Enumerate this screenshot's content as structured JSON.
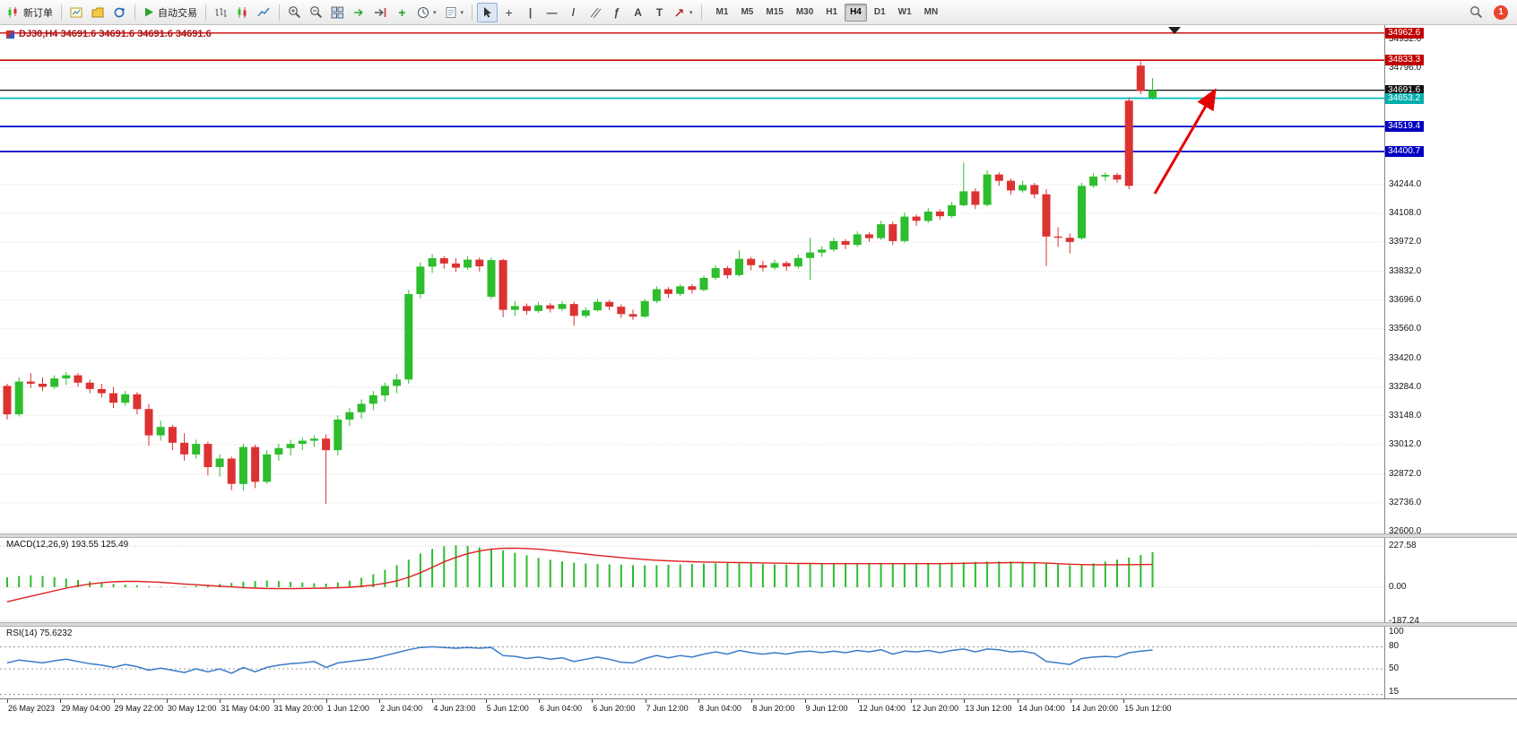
{
  "toolbar": {
    "new_order_label": "新订单",
    "autotrade_label": "自动交易",
    "timeframes": [
      "M1",
      "M5",
      "M15",
      "M30",
      "H1",
      "H4",
      "D1",
      "W1",
      "MN"
    ],
    "active_timeframe": "H4",
    "notification_count": "1"
  },
  "chart": {
    "title": "DJ30,H4 34691.6 34691.6 34691.6 34691.6",
    "symbol": "DJ30",
    "period": "H4",
    "current_price": "34691.6"
  },
  "chart_data": {
    "type": "candlestick",
    "title": "DJ30,H4",
    "visible_range": {
      "min": 32600,
      "max": 34962.6
    },
    "main": {
      "colors": {
        "up": "#2DBD2D",
        "down": "#DC3232"
      },
      "grid_prices": [
        34932,
        34796,
        34660,
        34524,
        34388,
        34244,
        34108,
        33972,
        33832,
        33696,
        33560,
        33420,
        33284,
        33148,
        33012,
        32872,
        32736,
        32600
      ],
      "axis_labels": [
        "34932.0",
        "34796.0",
        "34244.0",
        "34108.0",
        "33972.0",
        "33832.0",
        "33696.0",
        "33560.0",
        "33420.0",
        "33284.0",
        "33148.0",
        "33012.0",
        "32872.0",
        "32736.0",
        "32600.0"
      ],
      "levels": [
        {
          "name": "resistance-upper",
          "label": "34962.6",
          "price": 34962.6,
          "color": "#CC0000",
          "badge_bg": "#C00000",
          "width": 1.3
        },
        {
          "name": "resistance-lower",
          "label": "34833.3",
          "price": 34833.3,
          "color": "#CC0000",
          "badge_bg": "#C00000",
          "width": 1.6
        },
        {
          "name": "current-price",
          "label": "34691.6",
          "price": 34691.6,
          "color": "#111111",
          "badge_bg": "#111111",
          "width": 1.2
        },
        {
          "name": "support-cyan",
          "label": "34653.2",
          "price": 34653.2,
          "color": "#00BEBE",
          "badge_bg": "#00AEAE",
          "width": 1.8
        },
        {
          "name": "support-blue-1",
          "label": "34519.4",
          "price": 34519.4,
          "color": "#0000CD",
          "badge_bg": "#0000C0",
          "width": 1.8
        },
        {
          "name": "support-blue-2",
          "label": "34400.7",
          "price": 34400.7,
          "color": "#0000CD",
          "badge_bg": "#0000C0",
          "width": 1.8
        }
      ],
      "arrow": {
        "from": [
          1288,
          188
        ],
        "to": [
          1352,
          78
        ],
        "color": "#E60000"
      },
      "candles": [
        [
          33290,
          33300,
          33130,
          33155
        ],
        [
          33155,
          33330,
          33145,
          33310
        ],
        [
          33310,
          33350,
          33280,
          33300
        ],
        [
          33300,
          33330,
          33265,
          33285
        ],
        [
          33285,
          33340,
          33275,
          33325
        ],
        [
          33325,
          33355,
          33295,
          33340
        ],
        [
          33340,
          33350,
          33285,
          33305
        ],
        [
          33305,
          33320,
          33255,
          33275
        ],
        [
          33275,
          33300,
          33235,
          33255
        ],
        [
          33255,
          33285,
          33185,
          33210
        ],
        [
          33210,
          33265,
          33195,
          33250
        ],
        [
          33250,
          33260,
          33155,
          33180
        ],
        [
          33180,
          33205,
          33005,
          33055
        ],
        [
          33055,
          33125,
          33030,
          33095
        ],
        [
          33095,
          33105,
          32985,
          33020
        ],
        [
          33020,
          33065,
          32935,
          32965
        ],
        [
          32965,
          33035,
          32945,
          33015
        ],
        [
          33015,
          33025,
          32865,
          32905
        ],
        [
          32905,
          32965,
          32860,
          32945
        ],
        [
          32945,
          32955,
          32795,
          32825
        ],
        [
          32825,
          33015,
          32795,
          33000
        ],
        [
          33000,
          33010,
          32805,
          32835
        ],
        [
          32835,
          32985,
          32825,
          32965
        ],
        [
          32965,
          33015,
          32935,
          32995
        ],
        [
          32995,
          33035,
          32960,
          33015
        ],
        [
          33015,
          33045,
          32985,
          33030
        ],
        [
          33030,
          33055,
          33000,
          33040
        ],
        [
          33040,
          33060,
          32730,
          32985
        ],
        [
          32985,
          33150,
          32960,
          33130
        ],
        [
          33130,
          33185,
          33100,
          33165
        ],
        [
          33165,
          33225,
          33135,
          33205
        ],
        [
          33205,
          33265,
          33175,
          33245
        ],
        [
          33245,
          33305,
          33215,
          33290
        ],
        [
          33290,
          33345,
          33255,
          33320
        ],
        [
          33320,
          33745,
          33300,
          33725
        ],
        [
          33725,
          33875,
          33705,
          33855
        ],
        [
          33855,
          33915,
          33825,
          33895
        ],
        [
          33895,
          33905,
          33845,
          33870
        ],
        [
          33870,
          33895,
          33830,
          33850
        ],
        [
          33850,
          33905,
          33840,
          33888
        ],
        [
          33888,
          33898,
          33832,
          33856
        ],
        [
          33712,
          33898,
          33702,
          33886
        ],
        [
          33886,
          33892,
          33615,
          33650
        ],
        [
          33650,
          33692,
          33622,
          33668
        ],
        [
          33668,
          33680,
          33628,
          33645
        ],
        [
          33645,
          33688,
          33636,
          33672
        ],
        [
          33672,
          33682,
          33638,
          33655
        ],
        [
          33655,
          33692,
          33645,
          33678
        ],
        [
          33678,
          33688,
          33575,
          33622
        ],
        [
          33622,
          33662,
          33612,
          33648
        ],
        [
          33648,
          33702,
          33642,
          33688
        ],
        [
          33688,
          33698,
          33648,
          33665
        ],
        [
          33665,
          33676,
          33612,
          33630
        ],
        [
          33630,
          33652,
          33602,
          33618
        ],
        [
          33618,
          33702,
          33612,
          33692
        ],
        [
          33692,
          33762,
          33682,
          33748
        ],
        [
          33748,
          33758,
          33708,
          33726
        ],
        [
          33726,
          33772,
          33716,
          33762
        ],
        [
          33762,
          33772,
          33728,
          33745
        ],
        [
          33745,
          33812,
          33738,
          33802
        ],
        [
          33802,
          33862,
          33792,
          33848
        ],
        [
          33848,
          33858,
          33798,
          33815
        ],
        [
          33815,
          33932,
          33808,
          33892
        ],
        [
          33892,
          33902,
          33838,
          33862
        ],
        [
          33862,
          33882,
          33832,
          33850
        ],
        [
          33850,
          33888,
          33840,
          33872
        ],
        [
          33872,
          33882,
          33835,
          33856
        ],
        [
          33856,
          33912,
          33846,
          33896
        ],
        [
          33896,
          33992,
          33792,
          33922
        ],
        [
          33922,
          33952,
          33902,
          33936
        ],
        [
          33936,
          33992,
          33926,
          33976
        ],
        [
          33976,
          33986,
          33938,
          33958
        ],
        [
          33958,
          34022,
          33948,
          34008
        ],
        [
          34008,
          34018,
          33972,
          33990
        ],
        [
          33990,
          34072,
          33982,
          34056
        ],
        [
          34056,
          34068,
          33958,
          33976
        ],
        [
          33976,
          34112,
          33968,
          34092
        ],
        [
          34092,
          34102,
          34048,
          34072
        ],
        [
          34072,
          34132,
          34062,
          34116
        ],
        [
          34116,
          34126,
          34078,
          34094
        ],
        [
          34094,
          34162,
          34086,
          34146
        ],
        [
          34146,
          34348,
          34140,
          34212
        ],
        [
          34212,
          34226,
          34128,
          34148
        ],
        [
          34148,
          34312,
          34140,
          34292
        ],
        [
          34292,
          34302,
          34238,
          34262
        ],
        [
          34262,
          34272,
          34198,
          34216
        ],
        [
          34216,
          34262,
          34206,
          34242
        ],
        [
          34242,
          34252,
          34178,
          34198
        ],
        [
          34198,
          34222,
          33858,
          33998
        ],
        [
          33998,
          34042,
          33948,
          33992
        ],
        [
          33992,
          34012,
          33918,
          33972
        ],
        [
          33990,
          34252,
          33982,
          34238
        ],
        [
          34238,
          34298,
          34228,
          34282
        ],
        [
          34282,
          34302,
          34262,
          34290
        ],
        [
          34290,
          34300,
          34252,
          34268
        ],
        [
          34642,
          34658,
          34222,
          34238
        ],
        [
          34808,
          34828,
          34672,
          34688
        ],
        [
          34656,
          34748,
          34646,
          34692
        ]
      ]
    },
    "macd": {
      "label": "MACD(12,26,9) 193.55 125.49",
      "macd_value": 193.55,
      "signal_value": 125.49,
      "axis_labels": [
        "227.58",
        "0.00",
        "-187.24"
      ],
      "grid_values": [
        227.58,
        0,
        -187.24
      ],
      "histogram_color": "#2DBD2D",
      "signal_color": "#E02020",
      "histogram": [
        55,
        62,
        66,
        62,
        56,
        48,
        40,
        32,
        25,
        18,
        14,
        10,
        6,
        3,
        2,
        4,
        8,
        12,
        18,
        24,
        30,
        34,
        37,
        34,
        30,
        26,
        22,
        20,
        26,
        36,
        52,
        72,
        96,
        122,
        152,
        186,
        212,
        226,
        231,
        228,
        221,
        214,
        204,
        190,
        176,
        162,
        151,
        143,
        136,
        131,
        128,
        126,
        124,
        122,
        121,
        122,
        124,
        126,
        128,
        130,
        132,
        133,
        132,
        130,
        128,
        126,
        125,
        126,
        128,
        130,
        132,
        133,
        134,
        133,
        132,
        130,
        129,
        130,
        132,
        134,
        136,
        138,
        140,
        142,
        143,
        142,
        140,
        136,
        130,
        125,
        121,
        124,
        132,
        142,
        152,
        164,
        178,
        193.55
      ],
      "signal": [
        -80,
        -65,
        -50,
        -35,
        -20,
        -5,
        8,
        18,
        25,
        30,
        32,
        32,
        30,
        27,
        23,
        18,
        14,
        10,
        6,
        2,
        -2,
        -5,
        -7,
        -8,
        -8,
        -7,
        -6,
        -5,
        -3,
        0,
        5,
        12,
        22,
        35,
        55,
        80,
        110,
        140,
        165,
        185,
        200,
        210,
        215,
        216,
        214,
        210,
        204,
        197,
        190,
        183,
        176,
        170,
        164,
        158,
        153,
        149,
        146,
        143,
        141,
        139,
        138,
        137,
        136,
        135,
        134,
        133,
        132,
        131,
        131,
        130,
        130,
        130,
        130,
        130,
        130,
        130,
        130,
        130,
        130,
        130,
        131,
        132,
        133,
        134,
        135,
        136,
        136,
        135,
        133,
        130,
        127,
        125,
        124,
        124,
        124,
        124.5,
        125,
        125.49
      ]
    },
    "rsi": {
      "label": "RSI(14) 75.6232",
      "current_value": 75.6232,
      "axis_labels": [
        "100",
        "80",
        "50",
        "15"
      ],
      "level_lines": [
        80,
        50,
        15
      ],
      "line_color": "#3A7BC8",
      "values": [
        58,
        62,
        60,
        58,
        61,
        63,
        60,
        57,
        55,
        52,
        56,
        53,
        48,
        51,
        48,
        45,
        50,
        46,
        50,
        44,
        52,
        46,
        52,
        55,
        57,
        58,
        60,
        52,
        58,
        60,
        62,
        64,
        68,
        72,
        76,
        79,
        80,
        79,
        78,
        79,
        78,
        79,
        68,
        67,
        64,
        66,
        63,
        65,
        60,
        63,
        66,
        63,
        59,
        58,
        64,
        68,
        65,
        68,
        66,
        70,
        73,
        70,
        75,
        72,
        70,
        72,
        70,
        73,
        74,
        72,
        74,
        72,
        75,
        73,
        76,
        70,
        74,
        73,
        75,
        72,
        75,
        77,
        73,
        77,
        76,
        73,
        74,
        71,
        60,
        58,
        56,
        64,
        66,
        67,
        66,
        72,
        74,
        75.62
      ]
    },
    "time_axis": [
      "26 May 2023",
      "29 May 04:00",
      "29 May 22:00",
      "30 May 12:00",
      "31 May 04:00",
      "31 May 20:00",
      "1 Jun 12:00",
      "2 Jun 04:00",
      "4 Jun 23:00",
      "5 Jun 12:00",
      "6 Jun 04:00",
      "6 Jun 20:00",
      "7 Jun 12:00",
      "8 Jun 04:00",
      "8 Jun 20:00",
      "9 Jun 12:00",
      "12 Jun 04:00",
      "12 Jun 20:00",
      "13 Jun 12:00",
      "14 Jun 04:00",
      "14 Jun 20:00",
      "15 Jun 12:00"
    ]
  }
}
